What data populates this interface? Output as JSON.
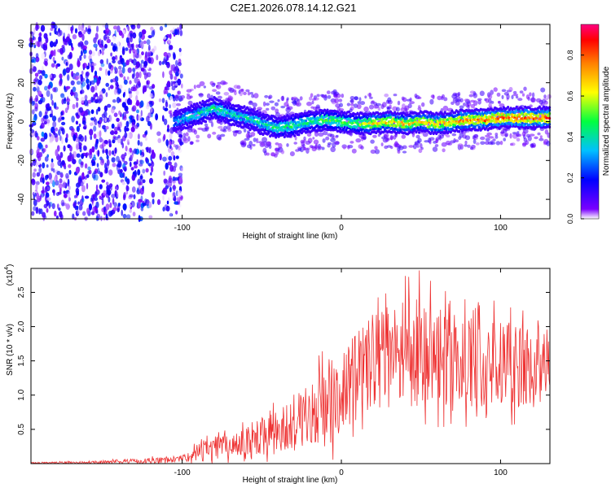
{
  "chart_data": [
    {
      "type": "heatmap",
      "title": "C2E1.2026.078.14.12.G21",
      "xlabel": "Height of straight line (km)",
      "ylabel": "Frequency (Hz)",
      "xlim": [
        -195,
        131
      ],
      "ylim": [
        -50,
        50
      ],
      "xticks": [
        -100,
        0,
        100
      ],
      "yticks": [
        -40,
        -20,
        0,
        20,
        40
      ],
      "colorbar": {
        "label": "Normalized spectral amplitude",
        "range": [
          0,
          0.95
        ],
        "ticks": [
          0.0,
          0.2,
          0.4,
          0.6,
          0.8
        ],
        "tick_labels": [
          "0.0",
          "0.2",
          "0.4",
          "0.6",
          "0.8"
        ],
        "colormap": [
          "#ffffff",
          "#7a00ff",
          "#0000ff",
          "#00c0ff",
          "#00ff40",
          "#ffff00",
          "#ff8000",
          "#ff0000",
          "#ff0080"
        ]
      },
      "ridge": {
        "x": [
          -105,
          -90,
          -80,
          -70,
          -60,
          -50,
          -40,
          -30,
          -20,
          -10,
          0,
          10,
          20,
          30,
          40,
          50,
          60,
          70,
          80,
          90,
          100,
          110,
          120,
          130
        ],
        "freq": [
          0,
          4,
          7,
          4,
          2,
          -1,
          -3,
          -2,
          0,
          1,
          0,
          -1,
          -1,
          0,
          -1,
          0,
          -1,
          0,
          1,
          1,
          2,
          2,
          2,
          2
        ],
        "peak_amplitude": [
          0.35,
          0.45,
          0.5,
          0.45,
          0.45,
          0.45,
          0.5,
          0.5,
          0.5,
          0.55,
          0.55,
          0.6,
          0.75,
          0.75,
          0.75,
          0.75,
          0.8,
          0.8,
          0.85,
          0.85,
          0.9,
          0.9,
          0.9,
          0.9
        ]
      }
    },
    {
      "type": "line",
      "xlabel": "Height of straight line (km)",
      "ylabel": "SNR (10 * v/v)",
      "scale_label": "(x10",
      "scale_exponent": "4",
      "xlim": [
        -195,
        131
      ],
      "ylim": [
        0,
        2.85
      ],
      "xticks": [
        -100,
        0,
        100
      ],
      "yticks": [
        0.5,
        1.0,
        1.5,
        2.0,
        2.5
      ],
      "ytick_labels": [
        "0.5",
        "1.0",
        "1.5",
        "2.0",
        "2.5"
      ],
      "line_color": "#ee3333",
      "envelope": {
        "x": [
          -195,
          -150,
          -110,
          -95,
          -90,
          -70,
          -50,
          -30,
          -10,
          0,
          10,
          20,
          30,
          40,
          50,
          60,
          70,
          80,
          90,
          100,
          110,
          120,
          131
        ],
        "mean": [
          0.01,
          0.02,
          0.05,
          0.08,
          0.2,
          0.25,
          0.35,
          0.55,
          0.85,
          1.0,
          1.35,
          1.5,
          1.55,
          1.6,
          1.65,
          1.55,
          1.55,
          1.5,
          1.45,
          1.45,
          1.4,
          1.45,
          1.4
        ],
        "spread": [
          0.01,
          0.02,
          0.05,
          0.06,
          0.15,
          0.2,
          0.3,
          0.4,
          0.6,
          0.6,
          0.6,
          0.7,
          0.75,
          0.8,
          0.8,
          0.7,
          0.7,
          0.7,
          0.65,
          0.6,
          0.6,
          0.6,
          0.55
        ]
      },
      "peak": {
        "x": 49,
        "y": 2.82
      }
    }
  ]
}
